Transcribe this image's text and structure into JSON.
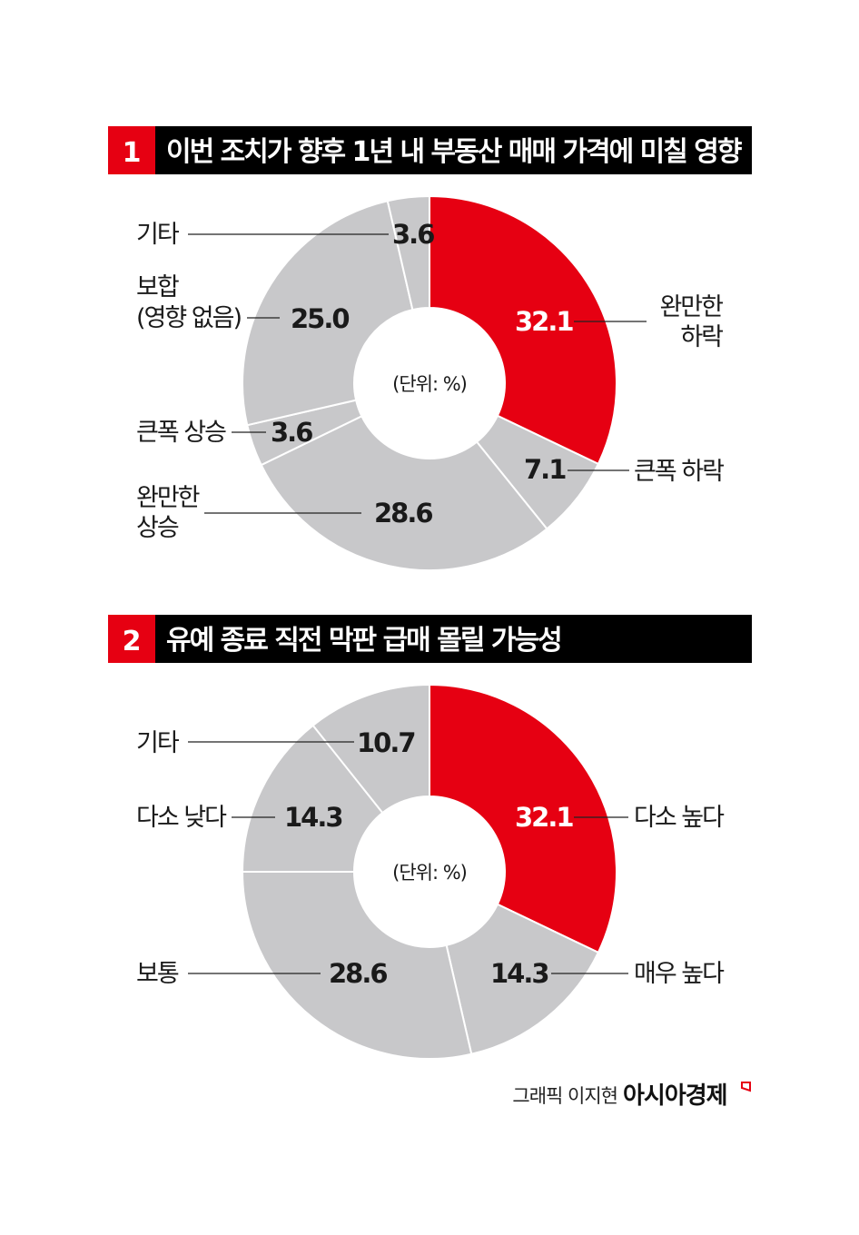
{
  "colors": {
    "highlight": "#e60012",
    "other": "#c8c8ca",
    "title_bar": "#000000",
    "number_box": "#e60012"
  },
  "chart_data": [
    {
      "type": "pie",
      "donut": true,
      "number": "1",
      "title": "이번 조치가 향후 1년 내 부동산 매매 가격에 미칠 영향",
      "unit_label": "(단위: %)",
      "slices": [
        {
          "label": [
            "완만한",
            "하락"
          ],
          "value": 32.1,
          "highlight": true
        },
        {
          "label": [
            "큰폭 하락"
          ],
          "value": 7.1
        },
        {
          "label": [
            "완만한",
            "상승"
          ],
          "value": 28.6
        },
        {
          "label": [
            "큰폭 상승"
          ],
          "value": 3.6
        },
        {
          "label": [
            "보합",
            "(영향 없음)"
          ],
          "value": 25.0
        },
        {
          "label": [
            "기타"
          ],
          "value": 3.6
        }
      ]
    },
    {
      "type": "pie",
      "donut": true,
      "number": "2",
      "title": "유예 종료 직전 막판 급매 몰릴 가능성",
      "unit_label": "(단위: %)",
      "slices": [
        {
          "label": [
            "다소 높다"
          ],
          "value": 32.1,
          "highlight": true
        },
        {
          "label": [
            "매우 높다"
          ],
          "value": 14.3
        },
        {
          "label": [
            "보통"
          ],
          "value": 28.6
        },
        {
          "label": [
            "다소 낮다"
          ],
          "value": 14.3
        },
        {
          "label": [
            "기타"
          ],
          "value": 10.7
        }
      ]
    }
  ],
  "footer": {
    "credit": "그래픽 이지현",
    "logo": "아시아경제"
  }
}
